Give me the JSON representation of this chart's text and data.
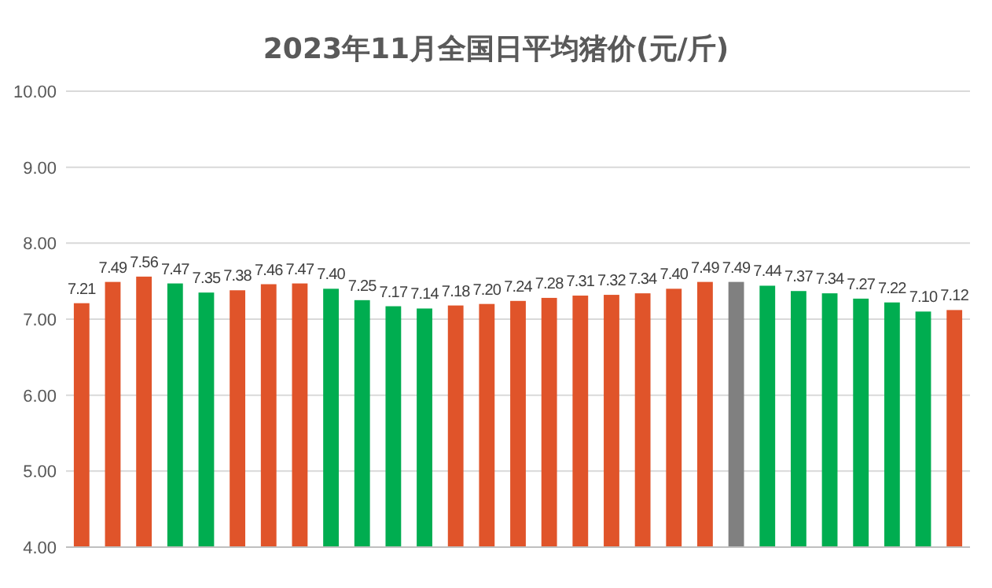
{
  "chart_data": {
    "type": "bar",
    "title": "2023年11月全国日平均猪价(元/斤)",
    "categories": [
      null,
      null,
      null,
      null,
      null,
      null,
      null,
      null,
      null,
      null,
      null,
      null,
      null,
      null,
      null,
      null,
      null,
      null,
      null,
      null,
      null,
      null,
      null,
      null,
      null,
      null,
      null,
      null,
      null
    ],
    "values": [
      7.21,
      7.49,
      7.56,
      7.47,
      7.35,
      7.38,
      7.46,
      7.47,
      7.4,
      7.25,
      7.17,
      7.14,
      7.18,
      7.2,
      7.24,
      7.28,
      7.31,
      7.32,
      7.34,
      7.4,
      7.49,
      7.49,
      7.44,
      7.37,
      7.34,
      7.27,
      7.22,
      7.1,
      7.12
    ],
    "colors": [
      "#e0542a",
      "#e0542a",
      "#e0542a",
      "#00ad50",
      "#00ad50",
      "#e0542a",
      "#e0542a",
      "#e0542a",
      "#00ad50",
      "#00ad50",
      "#00ad50",
      "#00ad50",
      "#e0542a",
      "#e0542a",
      "#e0542a",
      "#e0542a",
      "#e0542a",
      "#e0542a",
      "#e0542a",
      "#e0542a",
      "#e0542a",
      "#808080",
      "#00ad50",
      "#00ad50",
      "#00ad50",
      "#00ad50",
      "#00ad50",
      "#00ad50",
      "#e0542a"
    ],
    "ylim": [
      4,
      10
    ],
    "yticks": [
      {
        "value": 4,
        "label": "4.00"
      },
      {
        "value": 5,
        "label": "5.00"
      },
      {
        "value": 6,
        "label": "6.00"
      },
      {
        "value": 7,
        "label": "7.00"
      },
      {
        "value": 8,
        "label": "8.00"
      },
      {
        "value": 9,
        "label": "9.00"
      },
      {
        "value": 10,
        "label": "10.00"
      }
    ],
    "value_labels": [
      "7.21",
      "7.49",
      "7.56",
      "7.47",
      "7.35",
      "7.38",
      "7.46",
      "7.47",
      "7.40",
      "7.25",
      "7.17",
      "7.14",
      "7.18",
      "7.20",
      "7.24",
      "7.28",
      "7.31",
      "7.32",
      "7.34",
      "7.40",
      "7.49",
      "7.49",
      "7.44",
      "7.37",
      "7.34",
      "7.27",
      "7.22",
      "7.10",
      "7.12"
    ],
    "grid": "y"
  }
}
